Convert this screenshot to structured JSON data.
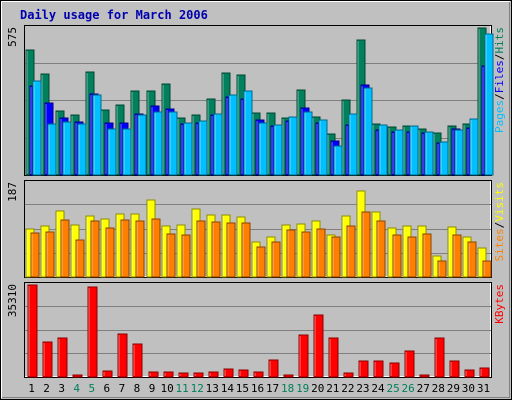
{
  "chart_data": {
    "type": "bar",
    "title": "Daily usage for March 2006",
    "categories": [
      "1",
      "2",
      "3",
      "4",
      "5",
      "6",
      "7",
      "8",
      "9",
      "10",
      "11",
      "12",
      "13",
      "14",
      "15",
      "16",
      "17",
      "18",
      "19",
      "20",
      "21",
      "22",
      "23",
      "24",
      "25",
      "26",
      "27",
      "28",
      "29",
      "30",
      "31"
    ],
    "weekend_days": [
      "4",
      "5",
      "11",
      "12",
      "18",
      "19",
      "25",
      "26"
    ],
    "panels": [
      {
        "id": "hits-files-pages",
        "max_label": "575",
        "ylim": [
          0,
          575
        ],
        "legend": [
          "Pages",
          "/",
          "Files",
          "/",
          "Hits"
        ],
        "series": [
          {
            "name": "Hits",
            "color": "#00805c",
            "values": [
              490,
              395,
              252,
              235,
              403,
              255,
              272,
              330,
              330,
              355,
              224,
              236,
              296,
              400,
              392,
              244,
              244,
              224,
              332,
              228,
              161,
              294,
              530,
              198,
              189,
              190,
              181,
              164,
              193,
              199,
              575
            ]
          },
          {
            "name": "Files",
            "color": "#0000ff",
            "values": [
              350,
              283,
              222,
              209,
              317,
              202,
              204,
              240,
              268,
              260,
              201,
              204,
              235,
              304,
              299,
              214,
              192,
              210,
              262,
              203,
              132,
              196,
              352,
              176,
              167,
              168,
              165,
              124,
              180,
              183,
              426
            ]
          },
          {
            "name": "Pages",
            "color": "#00c0ff",
            "values": [
              368,
              199,
              208,
              201,
              312,
              178,
              178,
              235,
              248,
              248,
              202,
              210,
              238,
              311,
              330,
              202,
              195,
              228,
              246,
              215,
              112,
              239,
              342,
              197,
              175,
              190,
              167,
              131,
              176,
              219,
              553
            ]
          }
        ]
      },
      {
        "id": "visits-sites",
        "max_label": "187",
        "ylim": [
          0,
          187
        ],
        "legend": [
          "Sites",
          "/",
          "Visits"
        ],
        "series": [
          {
            "name": "Visits",
            "color": "#ffff00",
            "values": [
              95,
              102,
              132,
              104,
              122,
              116,
              126,
              126,
              153,
              101,
              104,
              135,
              123,
              124,
              120,
              70,
              80,
              104,
              106,
              111,
              83,
              121,
              171,
              129,
              97,
              101,
              101,
              42,
              99,
              79,
              58
            ]
          },
          {
            "name": "Sites",
            "color": "#ff8000",
            "values": [
              88,
              89,
              114,
              74,
              111,
              97,
              113,
              112,
              115,
              86,
              84,
              111,
              110,
              108,
              107,
              60,
              69,
              93,
              90,
              95,
              80,
              101,
              130,
              112,
              84,
              80,
              86,
              31,
              84,
              70,
              32
            ]
          }
        ]
      },
      {
        "id": "kbytes",
        "max_label": "35310",
        "ylim": [
          0,
          35310
        ],
        "legend": [
          "KBytes"
        ],
        "series": [
          {
            "name": "KBytes",
            "color": "#ff0000",
            "values": [
              35310,
              13410,
              14910,
              950,
              34500,
              2160,
              16450,
              12550,
              1890,
              1890,
              1430,
              1480,
              2050,
              3260,
              2750,
              1840,
              6700,
              760,
              16190,
              23790,
              15090,
              1380,
              6140,
              6140,
              5360,
              9910,
              700,
              15090,
              6010,
              2550,
              3630
            ]
          }
        ]
      }
    ]
  }
}
